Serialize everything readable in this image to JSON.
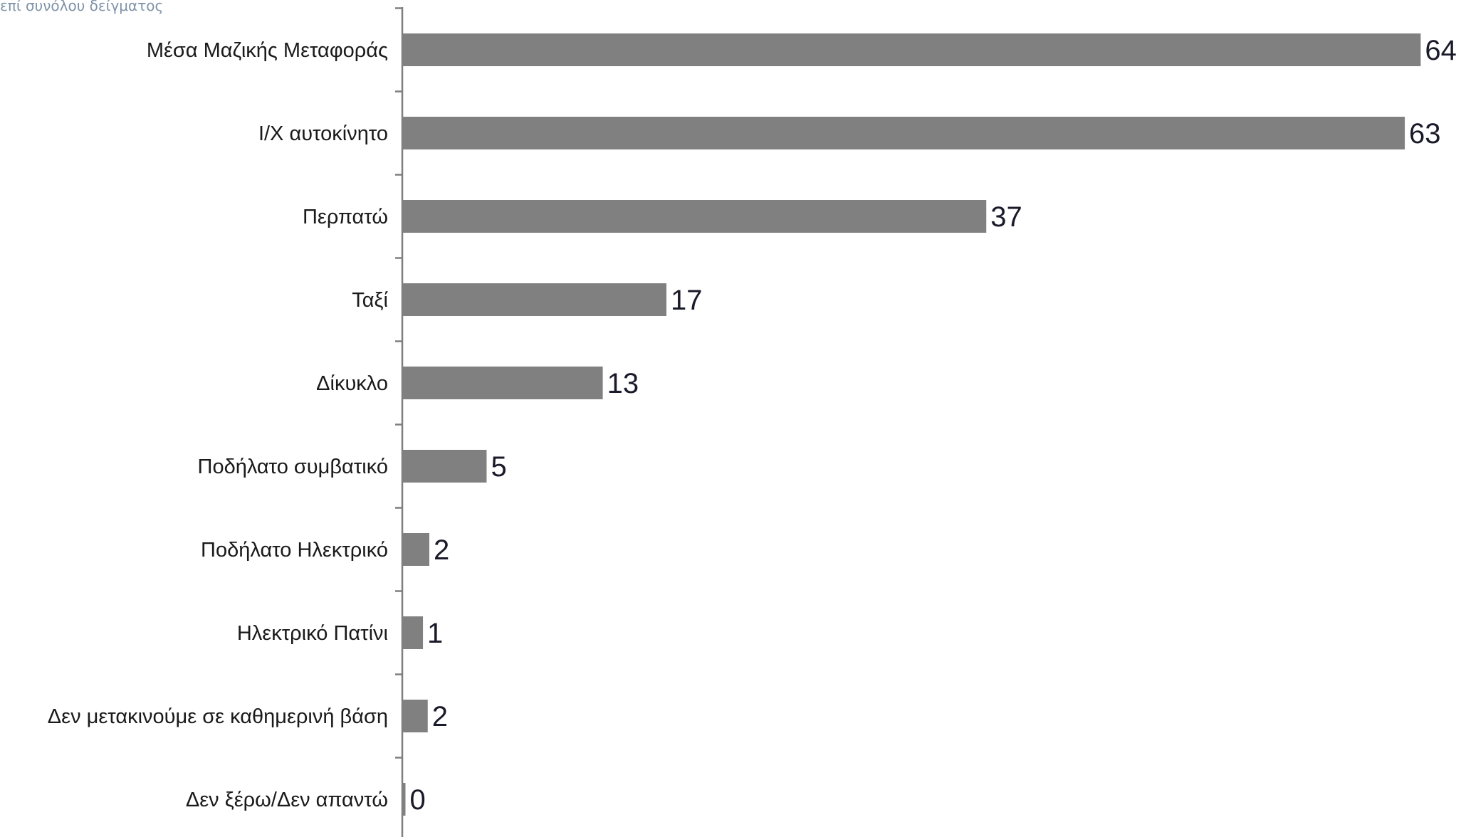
{
  "header": {
    "subtitle": "επί συνόλου δείγματος"
  },
  "colors": {
    "bar": "#808080",
    "axis": "#7f7f7f",
    "text": "#1a1a1a",
    "subtitle": "#7f93a8"
  },
  "chart_data": {
    "type": "bar",
    "orientation": "horizontal",
    "title": "",
    "subtitle": "επί συνόλου δείγματος",
    "xlabel": "",
    "ylabel": "",
    "grid": false,
    "legend": "none",
    "xlim": [
      0,
      64
    ],
    "categories": [
      "Μέσα Μαζικής Μεταφοράς",
      "Ι/Χ αυτοκίνητο",
      "Περπατώ",
      "Ταξί",
      "Δίκυκλο",
      "Ποδήλατο συμβατικό",
      "Ποδήλατο Ηλεκτρικό",
      "Ηλεκτρικό Πατίνι",
      "Δεν μετακινούμε σε καθημερινή βάση",
      "Δεν ξέρω/Δεν απαντώ"
    ],
    "values": [
      64,
      63,
      37,
      17,
      13,
      5,
      2,
      1,
      2,
      0
    ],
    "display_values": [
      64,
      63,
      37,
      17,
      13,
      5,
      2,
      1,
      2,
      0
    ],
    "bar_units": [
      64,
      63,
      36.7,
      16.6,
      12.6,
      5.3,
      1.7,
      1.3,
      1.6,
      0.2
    ]
  }
}
